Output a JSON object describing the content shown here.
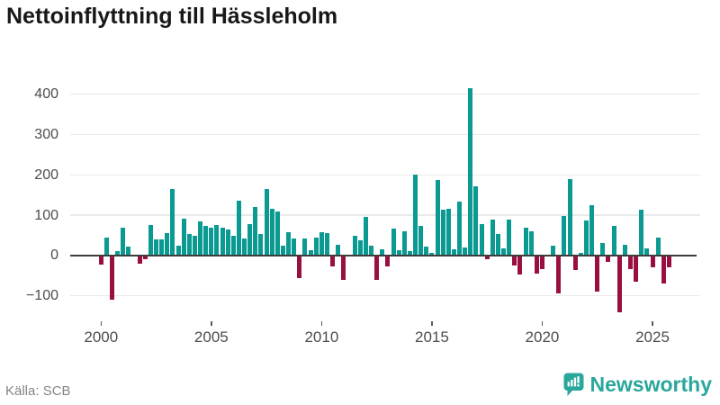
{
  "title": "Nettoinflyttning till Hässleholm",
  "source": "Källa: SCB",
  "brand": {
    "name": "Newsworthy",
    "color": "#2aa79b"
  },
  "chart_data": {
    "type": "bar",
    "title": "Nettoinflyttning till Hässleholm",
    "ylabel": "",
    "xlabel": "",
    "frequency": "quarterly",
    "start_period": "2000-Q1",
    "end_period": "2025-Q4",
    "grid": "horizontal",
    "ylim": [
      -150,
      440
    ],
    "positive_color": "#0a9a92",
    "negative_color": "#990f42",
    "y_ticks": [
      {
        "label": "400",
        "value": 400
      },
      {
        "label": "300",
        "value": 300
      },
      {
        "label": "200",
        "value": 200
      },
      {
        "label": "100",
        "value": 100
      },
      {
        "label": "0",
        "value": 0
      },
      {
        "label": "−100",
        "value": -100
      }
    ],
    "x_ticks": [
      {
        "label": "2000",
        "value": 2000
      },
      {
        "label": "2005",
        "value": 2005
      },
      {
        "label": "2010",
        "value": 2010
      },
      {
        "label": "2015",
        "value": 2015
      },
      {
        "label": "2020",
        "value": 2020
      },
      {
        "label": "2025",
        "value": 2025
      }
    ],
    "values": [
      -22,
      45,
      -110,
      10,
      70,
      22,
      0,
      -21,
      -10,
      75,
      40,
      41,
      56,
      165,
      24,
      92,
      53,
      50,
      84,
      74,
      68,
      75,
      70,
      65,
      50,
      135,
      42,
      77,
      120,
      53,
      165,
      115,
      110,
      24,
      57,
      42,
      -55,
      42,
      14,
      45,
      58,
      56,
      -27,
      27,
      -60,
      0,
      50,
      37,
      95,
      25,
      -60,
      15,
      -28,
      67,
      13,
      59,
      10,
      200,
      74,
      21,
      7,
      188,
      114,
      116,
      15,
      133,
      19,
      415,
      172,
      78,
      -9,
      89,
      53,
      17,
      89,
      -24,
      -47,
      68,
      61,
      -44,
      -34,
      0,
      24,
      -93,
      97,
      190,
      -36,
      6,
      86,
      125,
      -90,
      31,
      -16,
      73,
      -140,
      26,
      -33,
      -66,
      113,
      17,
      -30,
      45,
      -70,
      -30
    ]
  }
}
